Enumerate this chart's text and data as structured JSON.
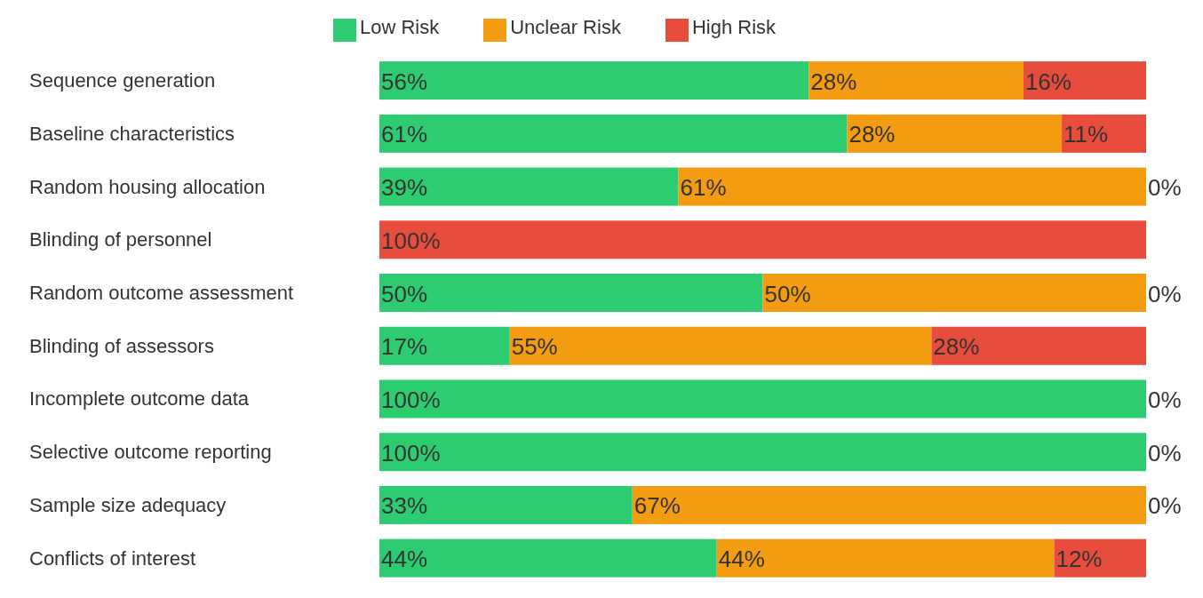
{
  "chart_data": {
    "type": "bar",
    "orientation": "horizontal",
    "stacked": true,
    "legend": "top",
    "xlim": [
      0,
      100
    ],
    "categories": [
      "Sequence generation",
      "Baseline characteristics",
      "Random housing allocation",
      "Blinding of personnel",
      "Random outcome assessment",
      "Blinding of assessors",
      "Incomplete outcome data",
      "Selective outcome reporting",
      "Sample size adequacy",
      "Conflicts of interest"
    ],
    "series": [
      {
        "name": "Low Risk",
        "color": "#2ecc71",
        "values": [
          56,
          61,
          39,
          0,
          50,
          17,
          100,
          100,
          33,
          44
        ],
        "value_labels": [
          "56%",
          "61%",
          "39%",
          null,
          "50%",
          "17%",
          "100%",
          "100%",
          "33%",
          "44%"
        ]
      },
      {
        "name": "Unclear Risk",
        "color": "#f39c12",
        "values": [
          28,
          28,
          61,
          0,
          50,
          55,
          0,
          0,
          67,
          44
        ],
        "value_labels": [
          "28%",
          "28%",
          "61%",
          null,
          "50%",
          "55%",
          null,
          null,
          "67%",
          "44%"
        ]
      },
      {
        "name": "High Risk",
        "color": "#e74c3c",
        "values": [
          16,
          11,
          0,
          100,
          0,
          28,
          0,
          0,
          0,
          12
        ],
        "value_labels": [
          "16%",
          "11%",
          "0%",
          "100%",
          "0%",
          "28%",
          "0%",
          "0%",
          "0%",
          "12%"
        ]
      }
    ]
  }
}
